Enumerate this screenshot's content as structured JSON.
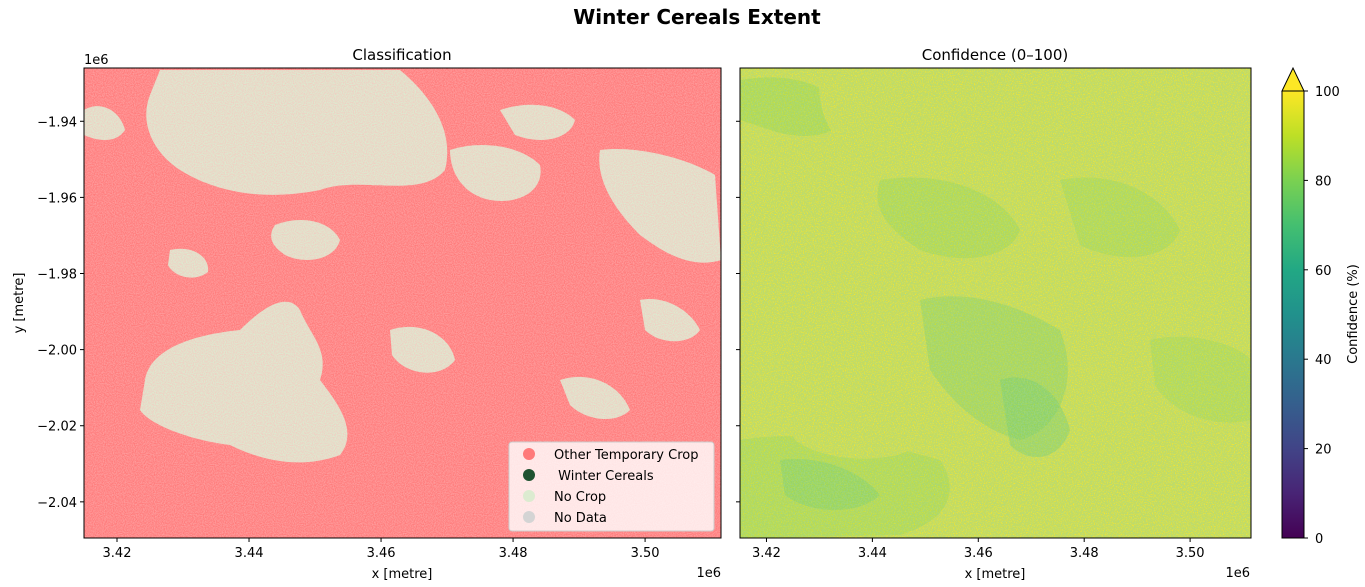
{
  "figure": {
    "title": "Winter Cereals Extent"
  },
  "chart_data": [
    {
      "type": "heatmap",
      "title": "Classification",
      "xlabel": "x [metre]",
      "ylabel": "y [metre]",
      "x_offset_label": "1e6",
      "y_offset_label": "1e6",
      "xlim": [
        3.415,
        3.5115
      ],
      "ylim": [
        -2.0495,
        -1.926
      ],
      "xticks": [
        3.42,
        3.44,
        3.46,
        3.48,
        3.5
      ],
      "xtick_labels": [
        "3.42",
        "3.44",
        "3.46",
        "3.48",
        "3.50"
      ],
      "yticks": [
        -1.94,
        -1.96,
        -1.98,
        -2.0,
        -2.02,
        -2.04
      ],
      "ytick_labels": [
        "−1.94",
        "−1.96",
        "−1.98",
        "−2.00",
        "−2.02",
        "−2.04"
      ],
      "legend": {
        "placement": "lower right",
        "entries": [
          {
            "label": "Other Temporary Crop",
            "color": "#ff7a7a"
          },
          {
            "label": " Winter Cereals",
            "color": "#1f5230"
          },
          {
            "label": "No Crop",
            "color": "#dcebd0"
          },
          {
            "label": "No Data",
            "color": "#d4d4d4"
          }
        ]
      },
      "grid": false
    },
    {
      "type": "heatmap",
      "title": "Confidence (0–100)",
      "xlabel": "x [metre]",
      "x_offset_label": "1e6",
      "xlim": [
        3.415,
        3.5115
      ],
      "ylim": [
        -2.0495,
        -1.926
      ],
      "xticks": [
        3.42,
        3.44,
        3.46,
        3.48,
        3.5
      ],
      "xtick_labels": [
        "3.42",
        "3.44",
        "3.46",
        "3.48",
        "3.50"
      ],
      "colormap": "viridis",
      "grid": false,
      "colorbar": {
        "label": "Confidence (%)",
        "range": [
          0,
          100
        ],
        "ticks": [
          0,
          20,
          40,
          60,
          80,
          100
        ],
        "tick_labels": [
          "0",
          "20",
          "40",
          "60",
          "80",
          "100"
        ],
        "extend": "max"
      }
    }
  ]
}
